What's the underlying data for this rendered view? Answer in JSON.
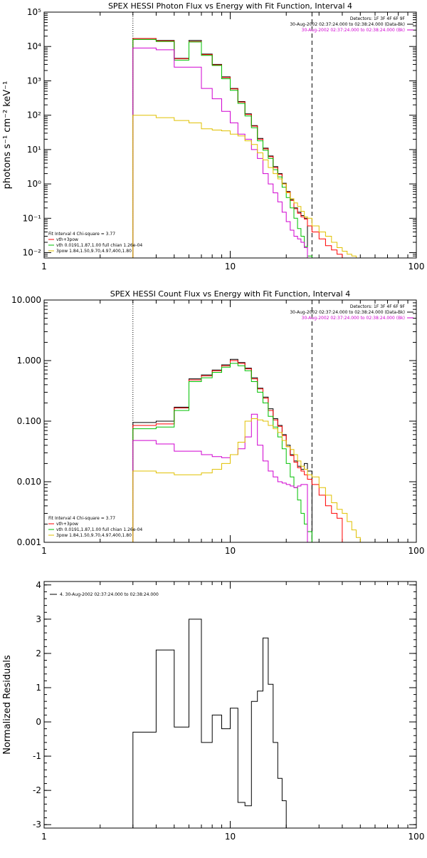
{
  "chart_data": [
    {
      "type": "line",
      "title": "SPEX HESSI Photon Flux vs Energy with Fit Function, Interval 4",
      "ylabel": "photons s⁻¹ cm⁻² keV⁻¹",
      "xlabel": "",
      "x_scale": "log",
      "y_scale": "log",
      "xlim": [
        1,
        100
      ],
      "ylim": [
        0.007,
        100000
      ],
      "x_ticks": [
        1,
        10,
        100
      ],
      "x_tick_labels": [
        "1",
        "10",
        "100"
      ],
      "y_ticks": [
        0.01,
        0.1,
        1,
        10,
        100,
        1000,
        10000,
        100000
      ],
      "y_tick_labels": [
        "10⁻²",
        "10⁻¹",
        "10⁰",
        "10¹",
        "10²",
        "10³",
        "10⁴",
        "10⁵"
      ],
      "vlines": [
        {
          "x": 3.0,
          "style": "dotted"
        },
        {
          "x": 27.5,
          "style": "dashed"
        }
      ],
      "legend_top_right": [
        {
          "text": "Detectors: 1F 3F 4F 6F 9F",
          "color": "#000000"
        },
        {
          "text": "30-Aug-2002 02:37:24.000 to 02:38:24.000 (Data-Bk)",
          "color": "#000000"
        },
        {
          "text": "30-Aug-2002 02:37:24.000 to 02:38:24.000 (Bk)",
          "color": "#d000d0"
        }
      ],
      "legend_bottom_left": [
        {
          "text": "Fit Interval 4   Chi-square = 3.77",
          "color": "#000000"
        },
        {
          "text": "vth+3pow",
          "color": "#ff0000"
        },
        {
          "text": "vth 0.0191,1.87,1.00  full chian 1.26e-04",
          "color": "#00c000"
        },
        {
          "text": "3pow 1.84,1.50,9.70,4.97,400,1.80",
          "color": "#e0c000"
        }
      ],
      "edges": [
        3,
        4,
        5,
        6,
        7,
        8,
        9,
        10,
        11,
        12,
        13,
        14,
        15,
        16,
        17,
        18,
        19,
        20,
        21,
        22,
        23,
        24,
        25,
        26,
        27.5,
        30,
        32.5,
        35,
        37.5,
        40,
        42.5,
        45,
        47.5,
        50
      ],
      "series": [
        {
          "color": "#000000",
          "values": [
            17000,
            15000,
            4500,
            15000,
            6000,
            3000,
            1300,
            600,
            250,
            110,
            50,
            21,
            11,
            6.5,
            3.2,
            2.0,
            1.05,
            0.6,
            0.35,
            0.2,
            0.15,
            0.12,
            0.1
          ]
        },
        {
          "color": "#ff0000",
          "values": [
            17000,
            14500,
            4400,
            14000,
            5800,
            2900,
            1250,
            580,
            240,
            105,
            48,
            20,
            10.5,
            6.2,
            3.0,
            1.9,
            1.0,
            0.58,
            0.33,
            0.19,
            0.14,
            0.11,
            0.095,
            0.06,
            0.04,
            0.025,
            0.016,
            0.012,
            0.009
          ]
        },
        {
          "color": "#00c000",
          "values": [
            16000,
            14000,
            4000,
            13500,
            5500,
            2800,
            1150,
            530,
            220,
            95,
            43,
            18,
            9.5,
            5.5,
            2.6,
            1.6,
            0.8,
            0.4,
            0.2,
            0.1,
            0.05,
            0.03,
            0.015,
            0.008
          ]
        },
        {
          "color": "#d000d0",
          "values": [
            9000,
            8000,
            2500,
            2500,
            600,
            300,
            130,
            60,
            28,
            20,
            10,
            5.5,
            2.0,
            1.0,
            0.55,
            0.3,
            0.15,
            0.08,
            0.045,
            0.03,
            0.025,
            0.02,
            0.014
          ]
        },
        {
          "color": "#e0c000",
          "values": [
            100,
            85,
            70,
            60,
            40,
            37,
            35,
            28,
            25,
            18,
            14,
            8,
            5,
            3,
            2,
            1.4,
            1,
            0.55,
            0.37,
            0.28,
            0.22,
            0.16,
            0.11,
            0.1,
            0.06,
            0.04,
            0.03,
            0.02,
            0.014,
            0.011,
            0.009,
            0.008,
            0.007
          ]
        }
      ]
    },
    {
      "type": "line",
      "title": "SPEX HESSI Count Flux vs Energy with Fit Function, Interval 4",
      "ylabel": "",
      "xlabel": "",
      "x_scale": "log",
      "y_scale": "log",
      "xlim": [
        1,
        100
      ],
      "ylim": [
        0.001,
        10
      ],
      "x_ticks": [
        1,
        10,
        100
      ],
      "x_tick_labels": [
        "1",
        "10",
        "100"
      ],
      "y_ticks": [
        0.001,
        0.01,
        0.1,
        1,
        10
      ],
      "y_tick_labels": [
        "0.001",
        "0.010",
        "0.100",
        "1.000",
        "10.000"
      ],
      "vlines": [
        {
          "x": 3.0,
          "style": "dotted"
        },
        {
          "x": 27.5,
          "style": "dashed"
        }
      ],
      "legend_top_right": [
        {
          "text": "Detectors: 1F 3F 4F 6F 9F",
          "color": "#000000"
        },
        {
          "text": "30-Aug-2002 02:37:24.000 to 02:38:24.000 (Data-Bk)",
          "color": "#000000"
        },
        {
          "text": "30-Aug-2002 02:37:24.000 to 02:38:24.000 (Bk)",
          "color": "#d000d0"
        }
      ],
      "legend_bottom_left": [
        {
          "text": "Fit Interval 4   Chi-square = 3.77",
          "color": "#000000"
        },
        {
          "text": "vth+3pow",
          "color": "#ff0000"
        },
        {
          "text": "vth 0.0191,1.87,1.00  full chian 1.26e-04",
          "color": "#00c000"
        },
        {
          "text": "3pow 1.84,1.50,9.70,4.97,400,1.80",
          "color": "#e0c000"
        }
      ],
      "edges": [
        3,
        4,
        5,
        6,
        7,
        8,
        9,
        10,
        11,
        12,
        13,
        14,
        15,
        16,
        17,
        18,
        19,
        20,
        21,
        22,
        23,
        24,
        25,
        26,
        27.5,
        30,
        32.5,
        35,
        37.5,
        40,
        42.5,
        45,
        47.5,
        50
      ],
      "series": [
        {
          "color": "#000000",
          "values": [
            0.095,
            0.1,
            0.17,
            0.5,
            0.58,
            0.7,
            0.85,
            1.05,
            0.93,
            0.75,
            0.52,
            0.35,
            0.25,
            0.16,
            0.11,
            0.085,
            0.06,
            0.04,
            0.028,
            0.022,
            0.018,
            0.016,
            0.02,
            0.015
          ]
        },
        {
          "color": "#ff0000",
          "values": [
            0.085,
            0.09,
            0.165,
            0.48,
            0.56,
            0.68,
            0.82,
            1.0,
            0.9,
            0.73,
            0.5,
            0.34,
            0.24,
            0.15,
            0.105,
            0.082,
            0.058,
            0.038,
            0.027,
            0.021,
            0.017,
            0.015,
            0.013,
            0.011,
            0.009,
            0.006,
            0.004,
            0.003,
            0.0025
          ]
        },
        {
          "color": "#00c000",
          "values": [
            0.075,
            0.08,
            0.15,
            0.45,
            0.52,
            0.64,
            0.78,
            0.9,
            0.82,
            0.68,
            0.45,
            0.3,
            0.2,
            0.12,
            0.08,
            0.055,
            0.035,
            0.02,
            0.012,
            0.008,
            0.005,
            0.003,
            0.002,
            0.0015
          ]
        },
        {
          "color": "#d000d0",
          "values": [
            0.048,
            0.042,
            0.032,
            0.032,
            0.028,
            0.026,
            0.025,
            0.028,
            0.035,
            0.055,
            0.13,
            0.04,
            0.022,
            0.015,
            0.012,
            0.01,
            0.0095,
            0.009,
            0.0085,
            0.008,
            0.0085,
            0.009,
            0.009
          ]
        },
        {
          "color": "#e0c000",
          "values": [
            0.015,
            0.014,
            0.013,
            0.013,
            0.014,
            0.016,
            0.02,
            0.028,
            0.045,
            0.1,
            0.11,
            0.105,
            0.1,
            0.085,
            0.075,
            0.065,
            0.048,
            0.038,
            0.034,
            0.028,
            0.022,
            0.018,
            0.016,
            0.013,
            0.012,
            0.008,
            0.006,
            0.0045,
            0.0035,
            0.003,
            0.0022,
            0.0016,
            0.0012
          ]
        }
      ]
    },
    {
      "type": "line",
      "title": "",
      "ylabel": "Normalized Residuals",
      "xlabel": "",
      "x_scale": "log",
      "y_scale": "linear",
      "xlim": [
        1,
        100
      ],
      "ylim": [
        -3.1,
        4.1
      ],
      "x_ticks": [
        1,
        10,
        100
      ],
      "x_tick_labels": [
        "1",
        "10",
        "100"
      ],
      "y_ticks": [
        -3,
        -2,
        -1,
        0,
        1,
        2,
        3,
        4
      ],
      "y_tick_labels": [
        "-3",
        "-2",
        "-1",
        "0",
        "1",
        "2",
        "3",
        "4"
      ],
      "legend_top_left": [
        {
          "text": "4. 30-Aug-2002 02:37:24.000 to 02:38:24.000",
          "color": "#000000"
        }
      ],
      "edges": [
        3,
        4,
        5,
        6,
        7,
        8,
        9,
        10,
        11,
        12,
        13,
        14,
        15,
        16,
        17,
        18,
        19,
        20,
        21,
        22,
        23,
        24,
        25,
        26,
        27.5
      ],
      "series": [
        {
          "color": "#000000",
          "values": [
            -0.3,
            2.1,
            -0.15,
            3.0,
            -0.6,
            0.2,
            -0.2,
            0.4,
            -2.35,
            -2.45,
            0.6,
            0.9,
            2.45,
            1.1,
            -0.6,
            -1.65,
            -2.3,
            -3.1
          ]
        }
      ]
    }
  ]
}
